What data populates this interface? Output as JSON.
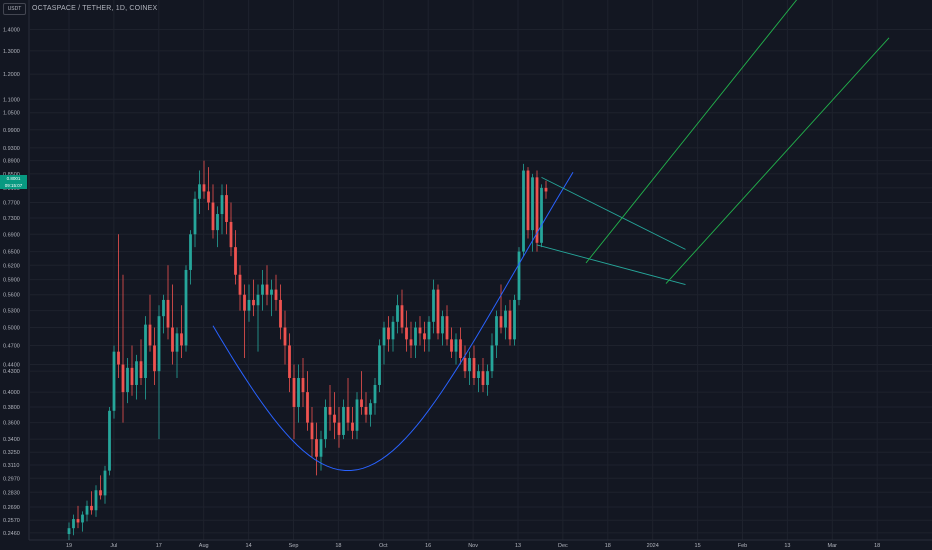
{
  "header": {
    "unit": "USDT",
    "title": "OCTASPACE / TETHER, 1D, COINEX"
  },
  "price_tag": {
    "price": "0.8001",
    "countdown": "09:15:07"
  },
  "colors": {
    "background": "#131722",
    "up": "#26a69a",
    "down": "#ef5350",
    "curve": "#2962ff",
    "channel": "#22b14c",
    "pennant": "#26a69a",
    "grid": "#1e222d"
  },
  "chart_data": {
    "type": "candlestick",
    "y_scale": "log",
    "ylim": [
      0.24,
      1.55
    ],
    "y_ticks": [
      "0.2460",
      "0.2570",
      "0.2690",
      "0.2830",
      "0.2970",
      "0.3110",
      "0.3250",
      "0.3400",
      "0.3600",
      "0.3800",
      "0.4000",
      "0.4300",
      "0.4400",
      "0.4700",
      "0.5000",
      "0.5300",
      "0.5600",
      "0.5900",
      "0.6200",
      "0.6500",
      "0.6900",
      "0.7300",
      "0.7700",
      "0.8100",
      "0.8500",
      "0.8900",
      "0.9300",
      "0.9900",
      "1.0500",
      "1.1000",
      "1.2000",
      "1.3000",
      "1.4000"
    ],
    "x_ticks": [
      "19",
      "Jul",
      "17",
      "Aug",
      "14",
      "Sep",
      "18",
      "Oct",
      "16",
      "Nov",
      "13",
      "Dec",
      "18",
      "2024",
      "15",
      "Feb",
      "13",
      "Mar",
      "18"
    ],
    "candles": [
      [
        0.245,
        0.255,
        0.24,
        0.25
      ],
      [
        0.25,
        0.262,
        0.244,
        0.258
      ],
      [
        0.258,
        0.27,
        0.25,
        0.255
      ],
      [
        0.255,
        0.265,
        0.247,
        0.262
      ],
      [
        0.262,
        0.275,
        0.256,
        0.27
      ],
      [
        0.27,
        0.284,
        0.262,
        0.266
      ],
      [
        0.266,
        0.29,
        0.26,
        0.285
      ],
      [
        0.285,
        0.3,
        0.276,
        0.28
      ],
      [
        0.28,
        0.31,
        0.272,
        0.305
      ],
      [
        0.305,
        0.38,
        0.3,
        0.375
      ],
      [
        0.375,
        0.47,
        0.365,
        0.46
      ],
      [
        0.46,
        0.69,
        0.42,
        0.44
      ],
      [
        0.44,
        0.6,
        0.36,
        0.4
      ],
      [
        0.4,
        0.45,
        0.385,
        0.435
      ],
      [
        0.435,
        0.47,
        0.395,
        0.41
      ],
      [
        0.41,
        0.455,
        0.39,
        0.445
      ],
      [
        0.445,
        0.48,
        0.41,
        0.42
      ],
      [
        0.42,
        0.52,
        0.39,
        0.505
      ],
      [
        0.505,
        0.56,
        0.46,
        0.47
      ],
      [
        0.47,
        0.5,
        0.41,
        0.43
      ],
      [
        0.43,
        0.54,
        0.34,
        0.52
      ],
      [
        0.52,
        0.56,
        0.49,
        0.55
      ],
      [
        0.55,
        0.62,
        0.48,
        0.5
      ],
      [
        0.5,
        0.58,
        0.44,
        0.46
      ],
      [
        0.46,
        0.5,
        0.42,
        0.49
      ],
      [
        0.49,
        0.54,
        0.45,
        0.47
      ],
      [
        0.47,
        0.62,
        0.46,
        0.61
      ],
      [
        0.61,
        0.7,
        0.58,
        0.69
      ],
      [
        0.69,
        0.8,
        0.66,
        0.78
      ],
      [
        0.78,
        0.86,
        0.74,
        0.82
      ],
      [
        0.82,
        0.89,
        0.78,
        0.8
      ],
      [
        0.8,
        0.87,
        0.75,
        0.77
      ],
      [
        0.77,
        0.82,
        0.68,
        0.7
      ],
      [
        0.7,
        0.76,
        0.66,
        0.74
      ],
      [
        0.74,
        0.82,
        0.69,
        0.79
      ],
      [
        0.79,
        0.82,
        0.69,
        0.72
      ],
      [
        0.72,
        0.77,
        0.64,
        0.66
      ],
      [
        0.66,
        0.7,
        0.58,
        0.6
      ],
      [
        0.6,
        0.62,
        0.53,
        0.56
      ],
      [
        0.56,
        0.58,
        0.45,
        0.53
      ],
      [
        0.53,
        0.58,
        0.51,
        0.55
      ],
      [
        0.55,
        0.59,
        0.52,
        0.54
      ],
      [
        0.54,
        0.58,
        0.46,
        0.56
      ],
      [
        0.56,
        0.61,
        0.53,
        0.58
      ],
      [
        0.58,
        0.62,
        0.54,
        0.56
      ],
      [
        0.56,
        0.59,
        0.52,
        0.57
      ],
      [
        0.57,
        0.6,
        0.53,
        0.55
      ],
      [
        0.55,
        0.58,
        0.48,
        0.5
      ],
      [
        0.5,
        0.53,
        0.44,
        0.47
      ],
      [
        0.47,
        0.49,
        0.4,
        0.42
      ],
      [
        0.42,
        0.44,
        0.34,
        0.38
      ],
      [
        0.38,
        0.44,
        0.36,
        0.42
      ],
      [
        0.42,
        0.45,
        0.38,
        0.4
      ],
      [
        0.4,
        0.43,
        0.35,
        0.36
      ],
      [
        0.36,
        0.38,
        0.32,
        0.34
      ],
      [
        0.34,
        0.36,
        0.3,
        0.32
      ],
      [
        0.32,
        0.35,
        0.305,
        0.34
      ],
      [
        0.34,
        0.39,
        0.33,
        0.38
      ],
      [
        0.38,
        0.41,
        0.35,
        0.37
      ],
      [
        0.37,
        0.4,
        0.34,
        0.36
      ],
      [
        0.36,
        0.38,
        0.33,
        0.345
      ],
      [
        0.345,
        0.39,
        0.34,
        0.38
      ],
      [
        0.38,
        0.42,
        0.35,
        0.36
      ],
      [
        0.36,
        0.38,
        0.34,
        0.35
      ],
      [
        0.35,
        0.4,
        0.34,
        0.39
      ],
      [
        0.39,
        0.43,
        0.37,
        0.38
      ],
      [
        0.38,
        0.4,
        0.36,
        0.37
      ],
      [
        0.37,
        0.39,
        0.355,
        0.385
      ],
      [
        0.385,
        0.42,
        0.37,
        0.41
      ],
      [
        0.41,
        0.48,
        0.4,
        0.47
      ],
      [
        0.47,
        0.51,
        0.44,
        0.5
      ],
      [
        0.5,
        0.52,
        0.46,
        0.48
      ],
      [
        0.48,
        0.52,
        0.46,
        0.51
      ],
      [
        0.51,
        0.56,
        0.49,
        0.54
      ],
      [
        0.54,
        0.57,
        0.49,
        0.5
      ],
      [
        0.5,
        0.53,
        0.46,
        0.48
      ],
      [
        0.48,
        0.51,
        0.45,
        0.47
      ],
      [
        0.47,
        0.51,
        0.45,
        0.5
      ],
      [
        0.5,
        0.52,
        0.47,
        0.49
      ],
      [
        0.49,
        0.51,
        0.46,
        0.48
      ],
      [
        0.48,
        0.52,
        0.46,
        0.51
      ],
      [
        0.51,
        0.59,
        0.49,
        0.57
      ],
      [
        0.57,
        0.58,
        0.48,
        0.49
      ],
      [
        0.49,
        0.53,
        0.47,
        0.52
      ],
      [
        0.52,
        0.54,
        0.47,
        0.48
      ],
      [
        0.48,
        0.5,
        0.45,
        0.46
      ],
      [
        0.46,
        0.49,
        0.44,
        0.48
      ],
      [
        0.48,
        0.5,
        0.44,
        0.45
      ],
      [
        0.45,
        0.47,
        0.42,
        0.43
      ],
      [
        0.43,
        0.46,
        0.41,
        0.45
      ],
      [
        0.45,
        0.47,
        0.41,
        0.42
      ],
      [
        0.42,
        0.44,
        0.4,
        0.43
      ],
      [
        0.43,
        0.45,
        0.4,
        0.41
      ],
      [
        0.41,
        0.44,
        0.395,
        0.43
      ],
      [
        0.43,
        0.49,
        0.42,
        0.47
      ],
      [
        0.47,
        0.53,
        0.45,
        0.52
      ],
      [
        0.52,
        0.58,
        0.49,
        0.5
      ],
      [
        0.5,
        0.54,
        0.48,
        0.53
      ],
      [
        0.53,
        0.55,
        0.47,
        0.48
      ],
      [
        0.48,
        0.56,
        0.47,
        0.55
      ],
      [
        0.55,
        0.66,
        0.54,
        0.65
      ],
      [
        0.65,
        0.88,
        0.64,
        0.86
      ],
      [
        0.86,
        0.87,
        0.68,
        0.7
      ],
      [
        0.7,
        0.85,
        0.65,
        0.84
      ],
      [
        0.84,
        0.86,
        0.65,
        0.67
      ],
      [
        0.67,
        0.82,
        0.66,
        0.81
      ],
      [
        0.81,
        0.83,
        0.78,
        0.8
      ]
    ],
    "annotations": {
      "rounded_bottom_curve": {
        "color": "blue"
      },
      "pennant": {
        "color": "teal"
      },
      "projected_channel": {
        "color": "green"
      }
    }
  }
}
